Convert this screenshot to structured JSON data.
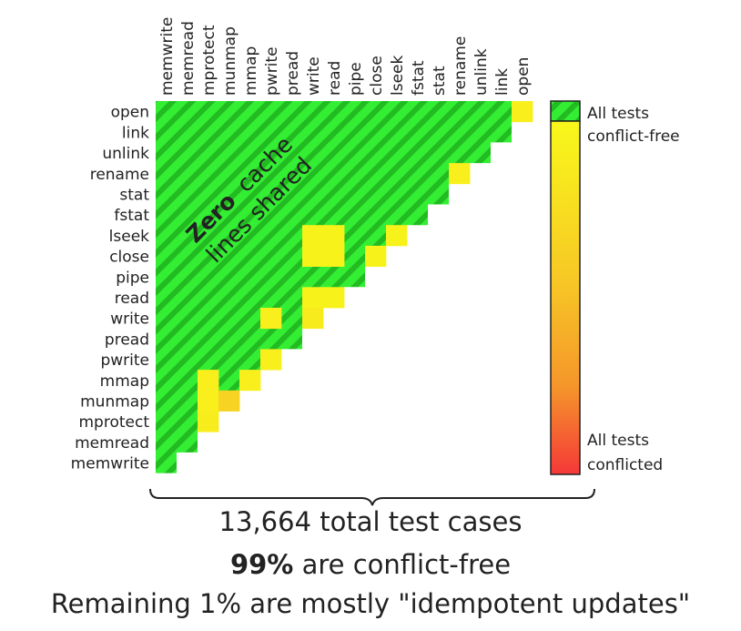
{
  "chart_data": {
    "type": "heatmap",
    "rows": [
      "open",
      "link",
      "unlink",
      "rename",
      "stat",
      "fstat",
      "lseek",
      "close",
      "pipe",
      "read",
      "write",
      "pread",
      "pwrite",
      "mmap",
      "munmap",
      "mprotect",
      "memread",
      "memwrite"
    ],
    "columns": [
      "memwrite",
      "memread",
      "mprotect",
      "munmap",
      "mmap",
      "pwrite",
      "pread",
      "write",
      "read",
      "pipe",
      "close",
      "lseek",
      "fstat",
      "stat",
      "rename",
      "unlink",
      "link",
      "open"
    ],
    "cells_note_scale": "0 = all tests conflict-free, 1 = all tests conflicted",
    "nonzero_cells": [
      {
        "row": "open",
        "col": "open",
        "value": 0.08
      },
      {
        "row": "rename",
        "col": "rename",
        "value": 0.08
      },
      {
        "row": "lseek",
        "col": "write",
        "value": 0.06
      },
      {
        "row": "lseek",
        "col": "read",
        "value": 0.06
      },
      {
        "row": "lseek",
        "col": "lseek",
        "value": 0.06
      },
      {
        "row": "close",
        "col": "write",
        "value": 0.06
      },
      {
        "row": "close",
        "col": "read",
        "value": 0.06
      },
      {
        "row": "close",
        "col": "close",
        "value": 0.06
      },
      {
        "row": "read",
        "col": "write",
        "value": 0.06
      },
      {
        "row": "read",
        "col": "read",
        "value": 0.06
      },
      {
        "row": "write",
        "col": "pwrite",
        "value": 0.08
      },
      {
        "row": "write",
        "col": "write",
        "value": 0.12
      },
      {
        "row": "pwrite",
        "col": "pwrite",
        "value": 0.08
      },
      {
        "row": "mmap",
        "col": "mprotect",
        "value": 0.08
      },
      {
        "row": "mmap",
        "col": "mmap",
        "value": 0.08
      },
      {
        "row": "munmap",
        "col": "mprotect",
        "value": 0.08
      },
      {
        "row": "munmap",
        "col": "munmap",
        "value": 0.35
      },
      {
        "row": "mprotect",
        "col": "mprotect",
        "value": 0.1
      }
    ],
    "annotation_bold": "Zero",
    "annotation_rest": "cache",
    "annotation_line2": "lines shared",
    "legend_top_line1": "All tests",
    "legend_top_line2": "conflict-free",
    "legend_bottom_line1": "All tests",
    "legend_bottom_line2": "conflicted",
    "colors": {
      "green": "#33ee33",
      "green_stripe": "#22bb22",
      "scale_yellow": "#f8f81a",
      "scale_orange": "#f5962a",
      "scale_red": "#f53838"
    }
  },
  "footer": {
    "line1": "13,664 total test cases",
    "line2_bold": "99%",
    "line2_rest": " are conflict-free",
    "line3": "Remaining 1% are mostly \"idempotent updates\""
  }
}
